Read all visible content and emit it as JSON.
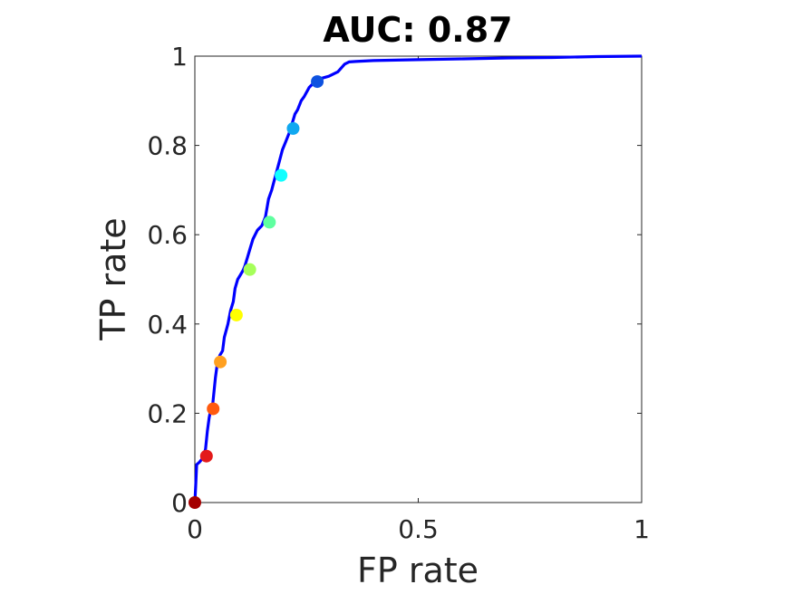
{
  "chart_data": {
    "type": "line",
    "title": "AUC: 0.87",
    "xlabel": "FP rate",
    "ylabel": "TP rate",
    "xlim": [
      0,
      1
    ],
    "ylim": [
      0,
      1
    ],
    "xticks": [
      0,
      0.5,
      1
    ],
    "xtick_labels": [
      "0",
      "0.5",
      "1"
    ],
    "yticks": [
      0,
      0.2,
      0.4,
      0.6,
      0.8,
      1
    ],
    "ytick_labels": [
      "0",
      "0.2",
      "0.4",
      "0.6",
      "0.8",
      "1"
    ],
    "grid": false,
    "curve_color": "#0000ff",
    "roc_curve": {
      "x": [
        0,
        0.002,
        0.004,
        0.01,
        0.018,
        0.024,
        0.028,
        0.032,
        0.036,
        0.04,
        0.046,
        0.05,
        0.056,
        0.062,
        0.066,
        0.074,
        0.08,
        0.086,
        0.09,
        0.096,
        0.102,
        0.108,
        0.112,
        0.118,
        0.124,
        0.13,
        0.14,
        0.15,
        0.158,
        0.165,
        0.172,
        0.18,
        0.188,
        0.196,
        0.204,
        0.212,
        0.218,
        0.224,
        0.23,
        0.238,
        0.245,
        0.256,
        0.266,
        0.272,
        0.282,
        0.3,
        0.32,
        0.335,
        0.345,
        0.36,
        0.4,
        0.5,
        0.6,
        0.7,
        0.8,
        0.9,
        1.0
      ],
      "y": [
        0,
        0.04,
        0.085,
        0.09,
        0.1,
        0.12,
        0.16,
        0.19,
        0.21,
        0.22,
        0.28,
        0.31,
        0.33,
        0.34,
        0.37,
        0.4,
        0.43,
        0.45,
        0.48,
        0.5,
        0.51,
        0.52,
        0.53,
        0.55,
        0.57,
        0.59,
        0.61,
        0.62,
        0.64,
        0.68,
        0.7,
        0.73,
        0.76,
        0.79,
        0.81,
        0.83,
        0.85,
        0.87,
        0.88,
        0.9,
        0.91,
        0.93,
        0.94,
        0.942,
        0.95,
        0.955,
        0.965,
        0.982,
        0.987,
        0.988,
        0.99,
        0.992,
        0.994,
        0.996,
        0.997,
        0.999,
        1.0
      ]
    },
    "threshold_markers": {
      "x": [
        0.0,
        0.026,
        0.041,
        0.057,
        0.093,
        0.123,
        0.167,
        0.193,
        0.22,
        0.274
      ],
      "y": [
        0.0,
        0.104,
        0.21,
        0.315,
        0.42,
        0.522,
        0.628,
        0.733,
        0.838,
        0.943
      ],
      "colors": [
        "#a50000",
        "#e31a1a",
        "#ff5a10",
        "#ffa020",
        "#ffff00",
        "#a6ff5a",
        "#5fffa0",
        "#10ffff",
        "#10a8f0",
        "#0d52e0"
      ]
    }
  }
}
